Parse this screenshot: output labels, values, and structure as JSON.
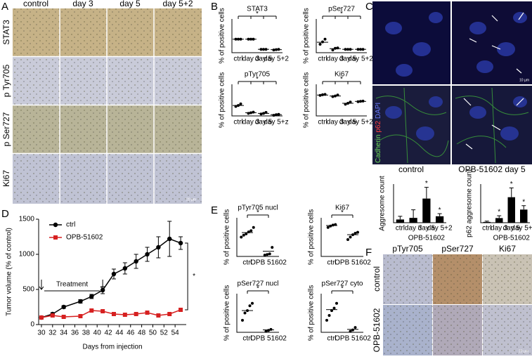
{
  "panels": {
    "labels": [
      "A",
      "B",
      "C",
      "D",
      "E",
      "F"
    ]
  },
  "images": {
    "A": {
      "columns": [
        "control",
        "day 3",
        "day 5",
        "day 5+2"
      ],
      "rows": [
        "STAT3",
        "p Tyr705",
        "p Ser727",
        "Ki67"
      ],
      "scale_bar": "20 µm"
    },
    "C": {
      "stain": [
        "Cadherin",
        "p62",
        "DAPI"
      ],
      "conditions": [
        "control",
        "OPB-51602 day 5"
      ],
      "scale_bar": "10 µm"
    },
    "F": {
      "columns": [
        "pTyr705",
        "pSer727",
        "Ki67"
      ],
      "rows": [
        "control",
        "OPB-51602"
      ],
      "scale_bar": "20 µm"
    }
  },
  "chart_data": [
    {
      "type": "dot",
      "title": "STAT3",
      "ylabel": "% of positive cells",
      "categories": [
        "ctrl",
        "day 3",
        "day 5",
        "day 5+2"
      ],
      "values": [
        40,
        40,
        10,
        9
      ],
      "points": [
        [
          40,
          40,
          40
        ],
        [
          40,
          40,
          40
        ],
        [
          10,
          10,
          10
        ],
        [
          8,
          9,
          10
        ]
      ],
      "ylim": [
        0,
        100
      ],
      "annotation": "*"
    },
    {
      "type": "dot",
      "title": "pSer727",
      "ylabel": "% of positive cells",
      "categories": [
        "ctrl",
        "day 3",
        "day 5",
        "day 5+2"
      ],
      "values": [
        31,
        12,
        10,
        10
      ],
      "points": [
        [
          25,
          32,
          40
        ],
        [
          8,
          13,
          14
        ],
        [
          10,
          10,
          10
        ],
        [
          10,
          10,
          10
        ]
      ],
      "ylim": [
        0,
        100
      ],
      "annotation": "*"
    },
    {
      "type": "dot",
      "title": "pTyr705",
      "ylabel": "% of positive cells",
      "categories": [
        "ctrl",
        "day 3",
        "day 5",
        "day 5+z"
      ],
      "values": [
        33,
        10,
        8,
        4
      ],
      "points": [
        [
          30,
          33,
          38
        ],
        [
          8,
          10,
          12
        ],
        [
          6,
          8,
          11
        ],
        [
          2,
          4,
          5
        ]
      ],
      "ylim": [
        0,
        100
      ],
      "annotation": "*"
    },
    {
      "type": "dot",
      "title": "Ki67",
      "ylabel": "% of positive cells",
      "categories": [
        "ctrl",
        "day 3",
        "day 5",
        "day 5+2"
      ],
      "values": [
        66,
        63,
        40,
        46
      ],
      "points": [
        [
          65,
          67,
          68
        ],
        [
          61,
          63,
          66
        ],
        [
          37,
          40,
          44
        ],
        [
          45,
          46,
          47
        ]
      ],
      "ylim": [
        0,
        100
      ],
      "annotation": "*"
    },
    {
      "type": "line",
      "xlabel": "Days from injection",
      "ylabel": "Tumor volume (% of control)",
      "x": [
        30,
        32,
        34,
        37,
        39,
        41,
        43,
        45,
        47,
        49,
        51,
        53,
        55
      ],
      "xlim": [
        29.5,
        56
      ],
      "xticks": [
        30,
        32,
        34,
        36,
        38,
        40,
        42,
        44,
        46,
        48,
        50,
        52,
        54
      ],
      "ylim": [
        0,
        1500
      ],
      "yticks": [
        0,
        500,
        1000,
        1500
      ],
      "legend": "top-left",
      "series": [
        {
          "name": "ctrl",
          "color": "#000000",
          "marker": "circle",
          "values": [
            100,
            150,
            250,
            330,
            400,
            490,
            720,
            800,
            900,
            1000,
            1100,
            1220,
            1160
          ],
          "errors": [
            10,
            20,
            20,
            25,
            30,
            50,
            70,
            80,
            100,
            100,
            150,
            250,
            90
          ]
        },
        {
          "name": "OPB-51602",
          "color": "#d62020",
          "marker": "square",
          "values": [
            100,
            130,
            110,
            120,
            200,
            190,
            150,
            140,
            150,
            170,
            130,
            150,
            210
          ]
        }
      ],
      "treatment": {
        "label": "Treatment",
        "x": [
          30,
          41
        ]
      },
      "annotation": "*"
    },
    {
      "type": "dot",
      "title": "pTyr705 nucl",
      "ylabel": "% of positive cells",
      "categories": [
        "ctrl",
        "OPB 51602"
      ],
      "values": [
        37,
        8
      ],
      "points": [
        [
          30,
          33,
          35,
          38,
          40,
          45
        ],
        [
          2,
          3,
          4,
          14
        ]
      ],
      "ylim": [
        0,
        60
      ],
      "annotation": "*"
    },
    {
      "type": "dot",
      "title": "Ki67",
      "ylabel": "% of positive cells",
      "categories": [
        "ctrl",
        "OPB 51602"
      ],
      "values": [
        64,
        45
      ],
      "points": [
        [
          60,
          63,
          65,
          66
        ],
        [
          35,
          40,
          45,
          48,
          50
        ]
      ],
      "ylim": [
        0,
        80
      ],
      "annotation": "*"
    },
    {
      "type": "dot",
      "title": "pSer727 nucl",
      "ylabel": "% of positive cells",
      "categories": [
        "ctrl",
        "OPB 51602"
      ],
      "values": [
        45,
        5
      ],
      "points": [
        [
          25,
          40,
          45,
          55,
          60
        ],
        [
          2,
          4,
          6
        ]
      ],
      "ylim": [
        0,
        80
      ],
      "annotation": "*"
    },
    {
      "type": "dot",
      "title": "pSer727 cyto",
      "ylabel": "% of positive cells",
      "categories": [
        "ctrl",
        "OPB 51602"
      ],
      "values": [
        47,
        6
      ],
      "points": [
        [
          25,
          35,
          45,
          50,
          60
        ],
        [
          2,
          5,
          10
        ]
      ],
      "ylim": [
        0,
        80
      ],
      "annotation": "*"
    },
    {
      "type": "bar",
      "ylabel": "Aggresome count",
      "group_label": "OPB-51602",
      "categories": [
        "ctrl",
        "day 3",
        "day 5",
        "day 5+2"
      ],
      "values": [
        1,
        1.5,
        7.5,
        2
      ],
      "errors": [
        1,
        2.5,
        3.5,
        0.8
      ],
      "ylim": [
        0,
        12
      ],
      "stars": [
        null,
        null,
        "*",
        "*"
      ]
    },
    {
      "type": "bar",
      "ylabel": "p62 aggresome count",
      "group_label": "OPB-51602",
      "categories": [
        "ctrl",
        "day 3",
        "day 5",
        "day 5+2"
      ],
      "values": [
        1,
        6,
        33,
        17
      ],
      "errors": [
        1,
        3,
        12,
        5
      ],
      "ylim": [
        0,
        50
      ],
      "stars": [
        null,
        "*",
        "*",
        "*"
      ]
    }
  ]
}
